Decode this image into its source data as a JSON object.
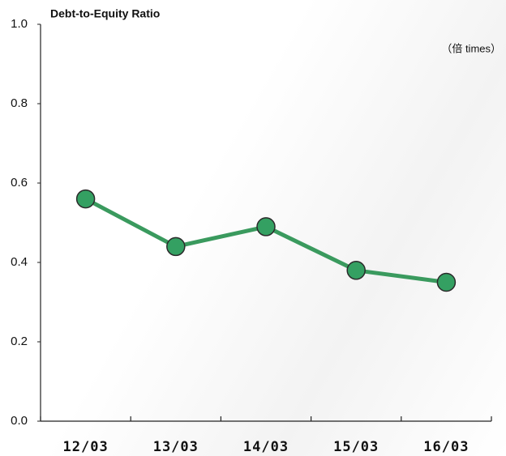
{
  "chart_data": {
    "type": "line",
    "title": "Debt-to-Equity Ratio",
    "unit_label": "（倍  times）",
    "categories": [
      "12/03",
      "13/03",
      "14/03",
      "15/03",
      "16/03"
    ],
    "series": [
      {
        "name": "Debt-to-Equity Ratio",
        "color": "#3a9a5e",
        "marker_color": "#34a062",
        "values": [
          0.56,
          0.44,
          0.49,
          0.38,
          0.35
        ]
      }
    ],
    "ylim": [
      0,
      1
    ],
    "yticks": [
      {
        "value": 0,
        "label": "0.0"
      },
      0.2,
      0.4,
      0.6,
      0.8,
      {
        "value": 1,
        "label": "1.0"
      }
    ],
    "grid": false,
    "legend": false
  }
}
